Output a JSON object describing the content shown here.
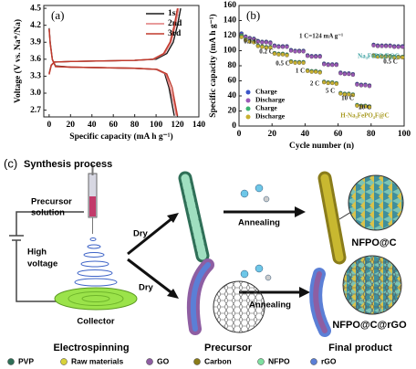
{
  "chart_data": [
    {
      "type": "line",
      "label": "(a)",
      "x_label": "Specific capacity (mA h g⁻¹)",
      "y_label": "Voltage (V vs. Na⁺/Na)",
      "xlim": [
        -5,
        140
      ],
      "ylim": [
        2.58,
        4.55
      ],
      "xticks": [
        0,
        20,
        40,
        60,
        80,
        100,
        120,
        140
      ],
      "yticks": [
        2.7,
        {
          "value": 3,
          "label": "3.0"
        },
        3.3,
        3.6,
        3.9,
        4.2,
        4.5
      ],
      "legend": "upper right",
      "series": [
        {
          "name": "1st",
          "color": "#1a1a1a",
          "x": [
            0,
            2,
            5,
            20,
            50,
            80,
            100,
            110,
            116,
            120,
            123,
            null,
            0,
            1,
            3,
            6,
            20,
            50,
            80,
            100,
            108,
            112,
            115,
            117
          ],
          "values": [
            3.35,
            3.5,
            3.55,
            3.56,
            3.57,
            3.58,
            3.6,
            3.7,
            3.9,
            4.2,
            4.5,
            null,
            4.15,
            3.9,
            3.6,
            3.48,
            3.46,
            3.45,
            3.44,
            3.42,
            3.35,
            3.1,
            2.8,
            2.6
          ]
        },
        {
          "name": "2nd",
          "color": "#e07a7a",
          "x": [
            0,
            2,
            5,
            20,
            50,
            80,
            98,
            108,
            114,
            118,
            121,
            null,
            0,
            1,
            3,
            6,
            20,
            50,
            80,
            100,
            109,
            113,
            117,
            119
          ],
          "values": [
            3.34,
            3.5,
            3.55,
            3.56,
            3.57,
            3.58,
            3.6,
            3.7,
            3.9,
            4.2,
            4.5,
            null,
            4.14,
            3.88,
            3.6,
            3.47,
            3.46,
            3.45,
            3.44,
            3.42,
            3.34,
            3.1,
            2.8,
            2.6
          ]
        },
        {
          "name": "3rd",
          "color": "#c0392b",
          "x": [
            0,
            2,
            5,
            20,
            50,
            80,
            97,
            107,
            113,
            117,
            120,
            null,
            0,
            1,
            3,
            6,
            20,
            50,
            80,
            101,
            110,
            115,
            118,
            120
          ],
          "values": [
            3.33,
            3.49,
            3.55,
            3.56,
            3.57,
            3.58,
            3.6,
            3.7,
            3.9,
            4.2,
            4.5,
            null,
            4.13,
            3.87,
            3.59,
            3.47,
            3.46,
            3.45,
            3.44,
            3.42,
            3.34,
            3.1,
            2.8,
            2.6
          ]
        }
      ]
    },
    {
      "type": "scatter",
      "label": "(b)",
      "x_label": "Cycle number (n)",
      "y_label": "Specific capacity (mA h g⁻¹)",
      "xlim": [
        0,
        100
      ],
      "ylim": [
        0,
        160
      ],
      "xticks": [
        0,
        20,
        40,
        60,
        80,
        100
      ],
      "yticks": [
        0,
        20,
        40,
        60,
        80,
        100,
        120,
        140,
        160
      ],
      "legend": "lower left",
      "annotations": [
        "0.1 C",
        "0.2 C",
        "0.5 C",
        "1 C",
        "2 C",
        "5 C",
        "10 C",
        "20 C",
        "0.5 C",
        "1 C=124 mA g⁻¹",
        "Na₃FePO₄F@C",
        "H-Na₃FePO₄F@C"
      ],
      "x": [
        1.5,
        4,
        6.5,
        9,
        11.5,
        14,
        16.5,
        19,
        21.5,
        24,
        26.5,
        29,
        31.5,
        34,
        36.5,
        39,
        41.5,
        44,
        46.5,
        49,
        51.5,
        54,
        56.5,
        59,
        61.5,
        64,
        66.5,
        69,
        71.5,
        74,
        76.5,
        79,
        81.5,
        84,
        86.5,
        89,
        91.5,
        94,
        96.5,
        99
      ],
      "series": [
        {
          "name": "Charge",
          "color": "#3b55c9",
          "values": [
            123,
            119,
            117,
            116,
            113,
            112,
            112,
            111,
            107,
            106,
            106,
            106,
            101,
            100,
            100,
            100,
            94,
            93,
            93,
            93,
            83,
            82,
            82,
            82,
            71,
            70,
            70,
            69,
            56,
            55,
            55,
            54,
            108,
            107,
            107,
            107,
            107,
            106,
            106,
            106
          ]
        },
        {
          "name": "Discharge",
          "color": "#9b59b6",
          "values": [
            121,
            118,
            116,
            115,
            112,
            111,
            111,
            110,
            106,
            105,
            105,
            105,
            100,
            99,
            99,
            99,
            93,
            92,
            92,
            92,
            82,
            81,
            81,
            81,
            70,
            69,
            69,
            68,
            55,
            54,
            54,
            53,
            107,
            106,
            106,
            106,
            106,
            105,
            105,
            105
          ]
        },
        {
          "name": "Charge",
          "color": "#3cb371",
          "values": [
            120,
            115,
            113,
            112,
            107,
            106,
            105,
            105,
            97,
            96,
            96,
            95,
            86,
            85,
            85,
            85,
            74,
            73,
            73,
            72,
            59,
            58,
            58,
            57,
            44,
            43,
            43,
            42,
            28,
            27,
            27,
            26,
            94,
            93,
            93,
            93,
            93,
            92,
            92,
            92
          ]
        },
        {
          "name": "Discharge",
          "color": "#c8b030",
          "values": [
            118,
            114,
            112,
            111,
            106,
            105,
            104,
            104,
            96,
            95,
            95,
            94,
            85,
            84,
            84,
            84,
            73,
            72,
            72,
            71,
            58,
            57,
            57,
            56,
            43,
            42,
            42,
            41,
            27,
            26,
            26,
            25,
            93,
            92,
            92,
            92,
            92,
            91,
            91,
            91
          ]
        }
      ]
    }
  ],
  "diagram": {
    "label": "(c)",
    "title": "Synthesis process",
    "precursor_solution": [
      "Precursor",
      "solution"
    ],
    "high_voltage": [
      "High",
      "voltage"
    ],
    "collector": "Collector",
    "dry": [
      "Dry",
      "Dry"
    ],
    "annealing": [
      "Annealing",
      "Annealing"
    ],
    "products": [
      "NFPO@C",
      "NFPO@C@rGO"
    ],
    "stages": [
      "Electrospinning",
      "Precursor",
      "Final product"
    ],
    "legend": [
      {
        "name": "PVP",
        "color": "#2f6f57"
      },
      {
        "name": "Raw materials",
        "color": "#d8d23a"
      },
      {
        "name": "GO",
        "color": "#8e5ea2"
      },
      {
        "name": "Carbon",
        "color": "#8a7c1a"
      },
      {
        "name": "NFPO",
        "color": "#7fe0a0"
      },
      {
        "name": "rGO",
        "color": "#5b7fd6"
      }
    ]
  }
}
